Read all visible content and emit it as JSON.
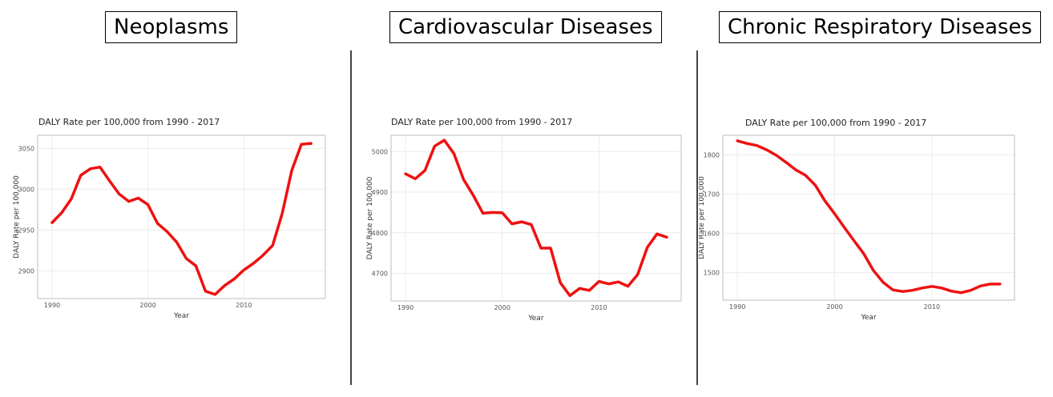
{
  "panels": [
    {
      "title": "Neoplasms"
    },
    {
      "title": "Cardiovascular Diseases"
    },
    {
      "title": "Chronic Respiratory Diseases"
    }
  ],
  "line_color": "#ee1111",
  "chart_data": [
    {
      "type": "line",
      "title": "DALY Rate per 100,000 from 1990 - 2017",
      "xlabel": "Year",
      "ylabel": "DALY Rate per 100,000",
      "xlim": [
        1988.5,
        2018.5
      ],
      "ylim": [
        2866,
        3066
      ],
      "xticks": [
        1990,
        2000,
        2010
      ],
      "yticks": [
        2900,
        2950,
        3000,
        3050
      ],
      "grid": true,
      "x": [
        1990,
        1991,
        1992,
        1993,
        1994,
        1995,
        1996,
        1997,
        1998,
        1999,
        2000,
        2001,
        2002,
        2003,
        2004,
        2005,
        2006,
        2007,
        2008,
        2009,
        2010,
        2011,
        2012,
        2013,
        2014,
        2015,
        2016,
        2017
      ],
      "values": [
        2959,
        2971,
        2988,
        3017,
        3025,
        3027,
        3010,
        2994,
        2985,
        2989,
        2981,
        2958,
        2948,
        2935,
        2915,
        2906,
        2875,
        2871,
        2882,
        2890,
        2901,
        2909,
        2919,
        2931,
        2970,
        3023,
        3055,
        3056
      ]
    },
    {
      "type": "line",
      "title": "DALY Rate per 100,000 from 1990 - 2017",
      "xlabel": "Year",
      "ylabel": "DALY Rate per 100,000",
      "xlim": [
        1988.5,
        2018.5
      ],
      "ylim": [
        4632,
        5040
      ],
      "xticks": [
        1990,
        2000,
        2010
      ],
      "yticks": [
        4700,
        4800,
        4900,
        5000
      ],
      "grid": true,
      "x": [
        1990,
        1991,
        1992,
        1993,
        1994,
        1995,
        1996,
        1997,
        1998,
        1999,
        2000,
        2001,
        2002,
        2003,
        2004,
        2005,
        2006,
        2007,
        2008,
        2009,
        2010,
        2011,
        2012,
        2013,
        2014,
        2015,
        2016,
        2017
      ],
      "values": [
        4945,
        4933,
        4953,
        5013,
        5028,
        4995,
        4931,
        4892,
        4848,
        4850,
        4849,
        4822,
        4827,
        4820,
        4762,
        4762,
        4677,
        4645,
        4663,
        4658,
        4680,
        4674,
        4679,
        4668,
        4697,
        4764,
        4797,
        4789
      ]
    },
    {
      "type": "line",
      "title": "DALY Rate per 100,000 from 1990 - 2017",
      "xlabel": "Year",
      "ylabel": "DALY Rate per 100,000",
      "xlim": [
        1988.5,
        2018.5
      ],
      "ylim": [
        1430,
        1850
      ],
      "xticks": [
        1990,
        2000,
        2010
      ],
      "yticks": [
        1500,
        1600,
        1700,
        1800
      ],
      "grid": true,
      "x": [
        1990,
        1991,
        1992,
        1993,
        1994,
        1995,
        1996,
        1997,
        1998,
        1999,
        2000,
        2001,
        2002,
        2003,
        2004,
        2005,
        2006,
        2007,
        2008,
        2009,
        2010,
        2011,
        2012,
        2013,
        2014,
        2015,
        2016,
        2017
      ],
      "values": [
        1836,
        1829,
        1824,
        1813,
        1799,
        1781,
        1762,
        1748,
        1723,
        1683,
        1650,
        1615,
        1581,
        1548,
        1505,
        1475,
        1456,
        1452,
        1455,
        1461,
        1465,
        1461,
        1453,
        1449,
        1455,
        1466,
        1471,
        1471
      ]
    }
  ]
}
